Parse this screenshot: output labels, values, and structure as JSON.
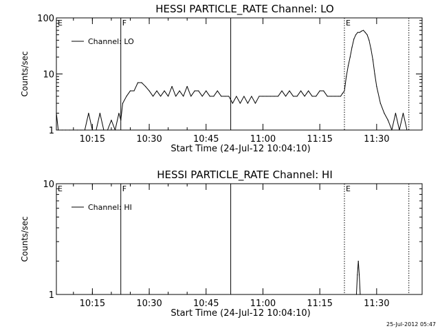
{
  "footer": {
    "timestamp": "25-Jul-2012 05:47"
  },
  "chart_data": [
    {
      "type": "line",
      "title": "HESSI PARTICLE_RATE Channel: LO",
      "xlabel": "Start Time (24-Jul-12 10:04:10)",
      "ylabel": "Counts/sec",
      "yscale": "log",
      "xlim": [
        "10:05:30",
        "11:42:00"
      ],
      "ylim": [
        1,
        100
      ],
      "x_ticks": [
        "10:15",
        "10:30",
        "10:45",
        "11:00",
        "11:15",
        "11:30"
      ],
      "y_ticks": [
        "1",
        "10",
        "100"
      ],
      "legend": "top-left",
      "markers": [
        {
          "time": "10:05:30",
          "label": "E",
          "style": "none"
        },
        {
          "time": "10:22:30",
          "label": "F",
          "style": "solid"
        },
        {
          "time": "10:51:30",
          "label": "",
          "style": "solid"
        },
        {
          "time": "11:21:30",
          "label": "E",
          "style": "dotted"
        },
        {
          "time": "11:38:30",
          "label": "",
          "style": "dotted"
        }
      ],
      "series": [
        {
          "name": "Channel: LO",
          "times": [
            "10:05:30",
            "10:06:00",
            "10:07:00",
            "10:08:00",
            "10:09:00",
            "10:10:00",
            "10:11:00",
            "10:12:00",
            "10:13:00",
            "10:14:00",
            "10:15:00",
            "10:16:00",
            "10:17:00",
            "10:18:00",
            "10:19:00",
            "10:20:00",
            "10:21:00",
            "10:22:00",
            "10:22:30",
            "10:23:00",
            "10:24:00",
            "10:25:00",
            "10:26:00",
            "10:27:00",
            "10:28:00",
            "10:29:00",
            "10:30:00",
            "10:31:00",
            "10:32:00",
            "10:33:00",
            "10:34:00",
            "10:35:00",
            "10:36:00",
            "10:37:00",
            "10:38:00",
            "10:39:00",
            "10:40:00",
            "10:41:00",
            "10:42:00",
            "10:43:00",
            "10:44:00",
            "10:45:00",
            "10:46:00",
            "10:47:00",
            "10:48:00",
            "10:49:00",
            "10:50:00",
            "10:51:00",
            "10:52:00",
            "10:53:00",
            "10:54:00",
            "10:55:00",
            "10:56:00",
            "10:57:00",
            "10:58:00",
            "10:59:00",
            "11:00:00",
            "11:01:00",
            "11:02:00",
            "11:03:00",
            "11:04:00",
            "11:05:00",
            "11:06:00",
            "11:07:00",
            "11:08:00",
            "11:09:00",
            "11:10:00",
            "11:11:00",
            "11:12:00",
            "11:13:00",
            "11:14:00",
            "11:15:00",
            "11:16:00",
            "11:17:00",
            "11:18:00",
            "11:19:00",
            "11:20:00",
            "11:20:30",
            "11:21:00",
            "11:21:30",
            "11:22:00",
            "11:22:30",
            "11:23:00",
            "11:23:30",
            "11:24:00",
            "11:24:30",
            "11:25:00",
            "11:25:30",
            "11:26:00",
            "11:26:30",
            "11:27:00",
            "11:27:30",
            "11:28:00",
            "11:28:30",
            "11:29:00",
            "11:29:30",
            "11:30:00",
            "11:31:00",
            "11:32:00",
            "11:33:00",
            "11:34:00",
            "11:35:00",
            "11:36:00",
            "11:37:00",
            "11:38:00"
          ],
          "values": [
            2,
            1,
            1,
            1,
            1,
            1,
            1,
            1,
            1,
            2,
            1,
            1,
            2,
            1,
            1,
            1.5,
            1,
            2,
            1.5,
            3,
            4,
            5,
            5,
            7,
            7,
            6,
            5,
            4,
            5,
            4,
            5,
            4,
            6,
            4,
            5,
            4,
            6,
            4,
            5,
            5,
            4,
            5,
            4,
            4,
            5,
            4,
            4,
            4,
            3,
            4,
            3,
            4,
            3,
            4,
            3,
            4,
            4,
            4,
            4,
            4,
            4,
            5,
            4,
            5,
            4,
            4,
            5,
            4,
            5,
            4,
            4,
            5,
            5,
            4,
            4,
            4,
            4,
            4,
            4.5,
            5,
            9,
            14,
            20,
            30,
            42,
            50,
            55,
            55,
            58,
            60,
            55,
            50,
            40,
            28,
            18,
            10,
            6,
            3,
            2,
            1.5,
            1,
            2,
            1,
            2,
            1
          ]
        }
      ]
    },
    {
      "type": "line",
      "title": "HESSI PARTICLE_RATE Channel: HI",
      "xlabel": "Start Time (24-Jul-12 10:04:10)",
      "ylabel": "Counts/sec",
      "yscale": "log",
      "xlim": [
        "10:05:30",
        "11:42:00"
      ],
      "ylim": [
        1,
        10
      ],
      "x_ticks": [
        "10:15",
        "10:30",
        "10:45",
        "11:00",
        "11:15",
        "11:30"
      ],
      "y_ticks": [
        "1",
        "10"
      ],
      "legend": "top-left",
      "markers": [
        {
          "time": "10:05:30",
          "label": "E",
          "style": "none"
        },
        {
          "time": "10:22:30",
          "label": "F",
          "style": "solid"
        },
        {
          "time": "10:51:30",
          "label": "",
          "style": "solid"
        },
        {
          "time": "11:21:30",
          "label": "E",
          "style": "dotted"
        },
        {
          "time": "11:38:30",
          "label": "",
          "style": "dotted"
        }
      ],
      "series": [
        {
          "name": "Channel: HI",
          "times": [
            "11:24:40",
            "11:24:55",
            "11:25:10",
            "11:25:25",
            "11:25:40"
          ],
          "values": [
            1,
            1.5,
            2,
            1.5,
            1
          ]
        }
      ]
    }
  ]
}
